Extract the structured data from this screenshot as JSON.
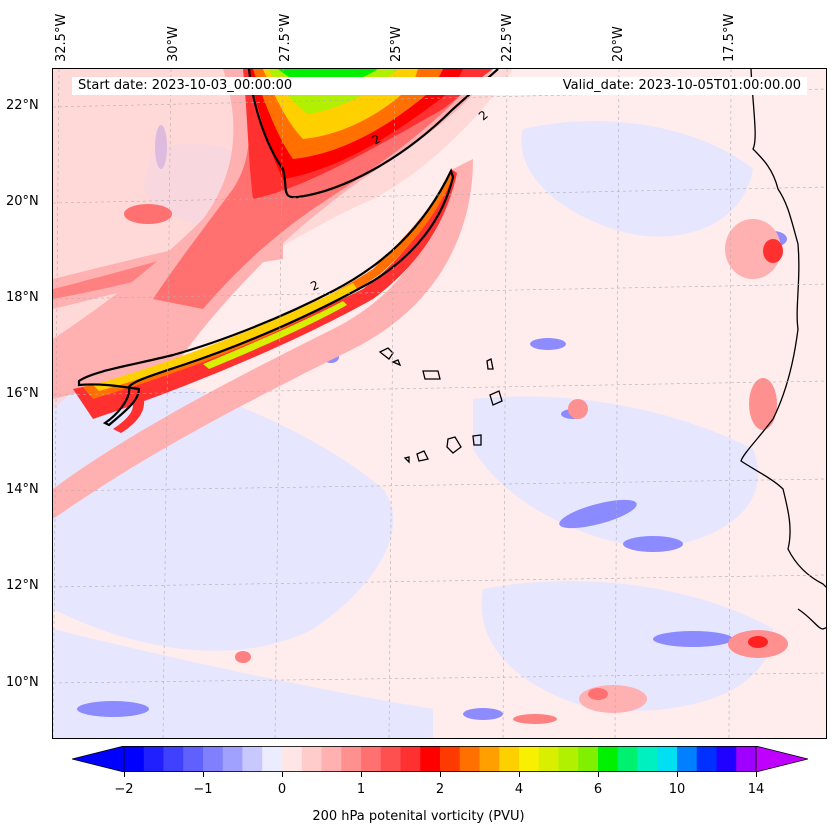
{
  "map": {
    "lon_labels": [
      "32.5°W",
      "30°W",
      "27.5°W",
      "25°W",
      "22.5°W",
      "20°W",
      "17.5°W"
    ],
    "lat_labels": [
      "22°N",
      "20°N",
      "18°N",
      "16°N",
      "14°N",
      "12°N",
      "10°N"
    ],
    "contour_label": "2",
    "region": "Tropical North Atlantic / Cape Verde / West Africa coast"
  },
  "info": {
    "start_date": "Start date: 2023-10-03_00:00:00",
    "valid_date": "Valid_date: 2023-10-05T01:00:00.00"
  },
  "colorbar": {
    "ticks": [
      "−2",
      "−1",
      "0",
      "1",
      "2",
      "4",
      "6",
      "10",
      "14"
    ],
    "label": "200 hPa potenital vorticity (PVU)",
    "colors": [
      "#0000ff",
      "#2020ff",
      "#4040ff",
      "#6060ff",
      "#8080ff",
      "#a0a0ff",
      "#c8c8ff",
      "#ececff",
      "#ffe6e6",
      "#ffcccc",
      "#ffb0b0",
      "#ff9090",
      "#ff7070",
      "#ff5050",
      "#ff3030",
      "#ff0000",
      "#ff3a00",
      "#ff7000",
      "#ffa000",
      "#ffd000",
      "#f8f000",
      "#d8f000",
      "#b0f000",
      "#80f000",
      "#00f000",
      "#00f070",
      "#00f0c0",
      "#00e0f0",
      "#0080ff",
      "#0030ff",
      "#2000ff",
      "#a000ff"
    ],
    "low_extend_color": "#0000ff",
    "high_extend_color": "#c000ff"
  },
  "colors": {
    "background_neutral": "#ffe8e8",
    "weak_negative": "#e8e8ff",
    "contour": "#000000"
  }
}
